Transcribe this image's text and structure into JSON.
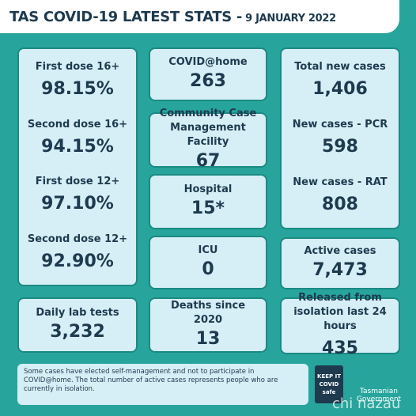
{
  "header": {
    "title": "TAS COVID-19 LATEST STATS -",
    "date": "9 JANUARY 2022"
  },
  "panels": [
    {
      "items": [
        {
          "label": "First dose 16+",
          "value": "98.15%"
        },
        {
          "label": "Second dose 16+",
          "value": "94.15%"
        },
        {
          "label": "First dose 12+",
          "value": "97.10%"
        },
        {
          "label": "Second dose 12+",
          "value": "92.90%"
        }
      ]
    },
    {
      "items": [
        {
          "label": "Daily lab tests",
          "value": "3,232"
        }
      ]
    },
    {
      "items": [
        {
          "label": "COVID@home",
          "value": "263"
        }
      ]
    },
    {
      "items": [
        {
          "label": "Community Case Management Facility",
          "value": "67"
        }
      ]
    },
    {
      "items": [
        {
          "label": "Hospital",
          "value": "15*"
        }
      ]
    },
    {
      "items": [
        {
          "label": "ICU",
          "value": "0"
        }
      ]
    },
    {
      "items": [
        {
          "label": "Deaths since 2020",
          "value": "13"
        }
      ]
    },
    {
      "items": [
        {
          "label": "Total new cases",
          "value": "1,406"
        },
        {
          "label": "New cases - PCR",
          "value": "598"
        },
        {
          "label": "New cases - RAT",
          "value": "808"
        }
      ]
    },
    {
      "items": [
        {
          "label": "Active cases",
          "value": "7,473"
        }
      ]
    },
    {
      "items": [
        {
          "label": "Released from isolation last 24 hours",
          "value": "435"
        }
      ]
    }
  ],
  "note": "Some cases have elected self-management and not to participate in COVID@home. The total number of active cases represents people who are currently in isolation.",
  "badge": [
    "KEEP IT",
    "COVID",
    "safe"
  ],
  "government": "Tasmanian Government",
  "watermark": "chi nazau"
}
